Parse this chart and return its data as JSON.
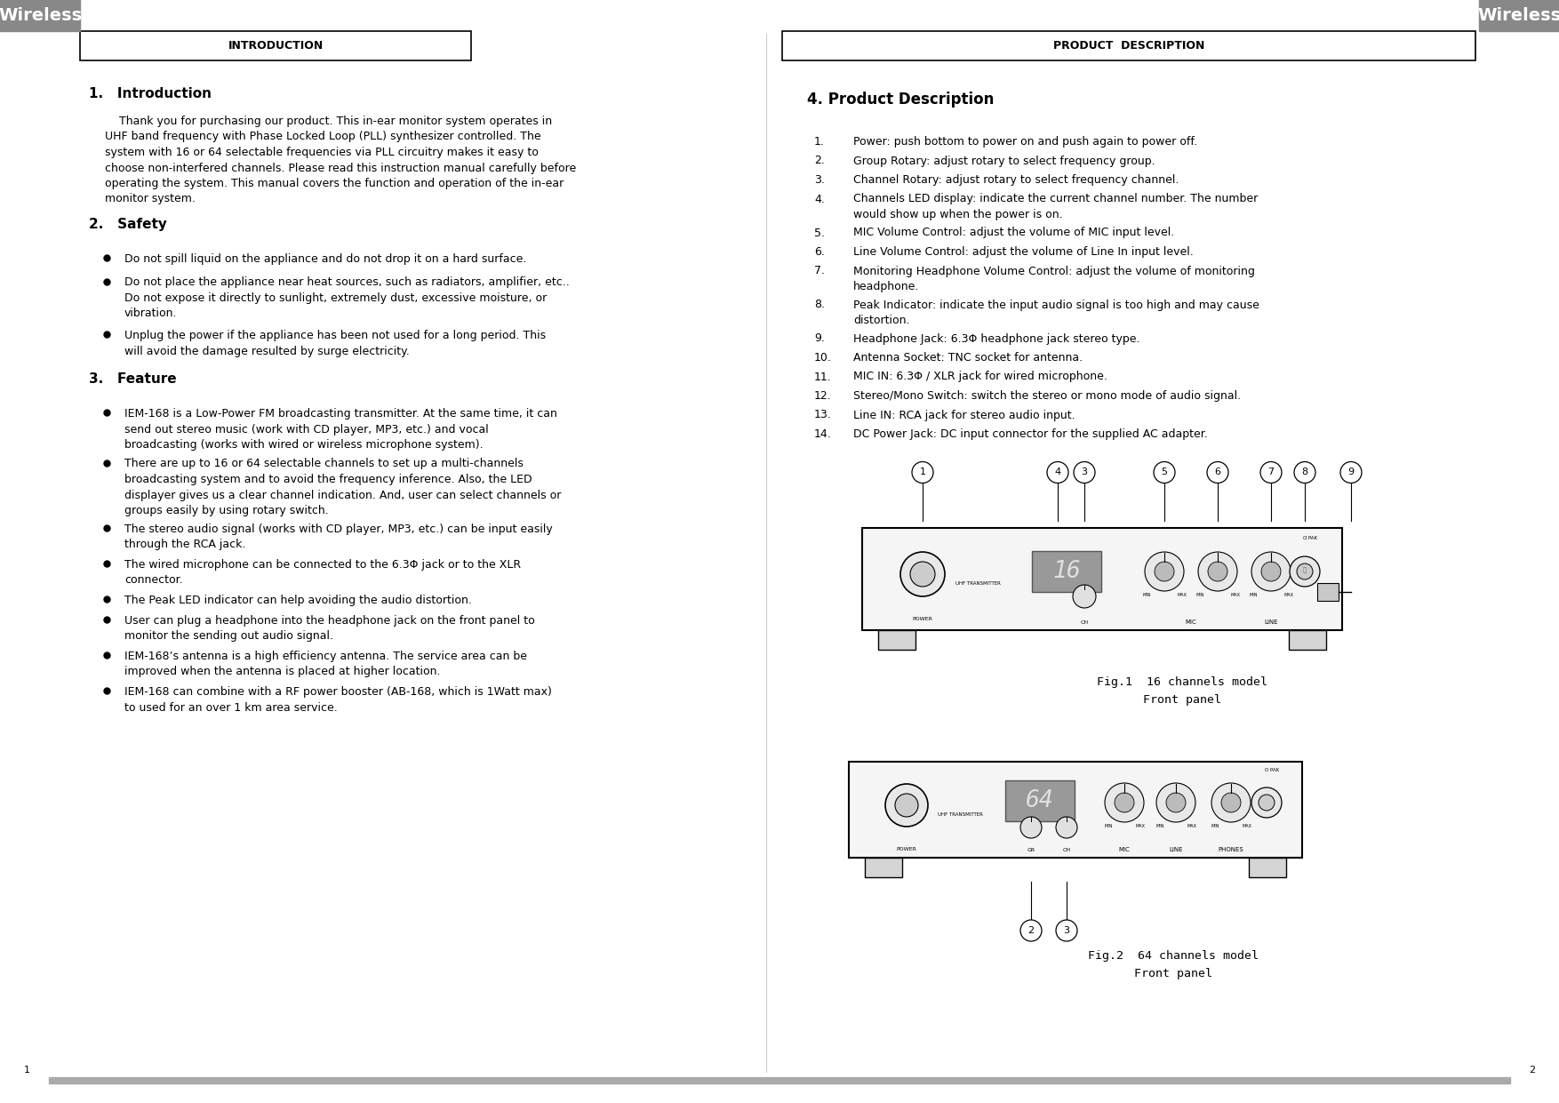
{
  "bg_color": "#ffffff",
  "header_bg": "#888888",
  "header_text_color": "#ffffff",
  "header_wireless_text": "Wireless",
  "header_wireless_fontsize": 14,
  "intro_box_label": "INTRODUCTION",
  "prod_box_label": "PRODUCT  DESCRIPTION",
  "footer_bar_color": "#aaaaaa",
  "page_num_left": "1",
  "page_num_right": "2",
  "left_column": {
    "section1_title": "1.   Introduction",
    "section1_indent": "    Thank you for purchasing our product. This in-ear monitor system operates in\nUHF band frequency with Phase Locked Loop (PLL) synthesizer controlled. The\nsystem with 16 or 64 selectable frequencies via PLL circuitry makes it easy to\nchoose non-interfered channels. Please read this instruction manual carefully before\noperating the system. This manual covers the function and operation of the in-ear\nmonitor system.",
    "section2_title": "2.   Safety",
    "section2_bullets": [
      "Do not spill liquid on the appliance and do not drop it on a hard surface.",
      "Do not place the appliance near heat sources, such as radiators, amplifier, etc..\nDo not expose it directly to sunlight, extremely dust, excessive moisture, or\nvibration.",
      "Unplug the power if the appliance has been not used for a long period. This\nwill avoid the damage resulted by surge electricity."
    ],
    "section3_title": "3.   Feature",
    "section3_bullets": [
      "IEM-168 is a Low-Power FM broadcasting transmitter. At the same time, it can\nsend out stereo music (work with CD player, MP3, etc.) and vocal\nbroadcasting (works with wired or wireless microphone system).",
      "There are up to 16 or 64 selectable channels to set up a multi-channels\nbroadcasting system and to avoid the frequency inference. Also, the LED\ndisplayer gives us a clear channel indication. And, user can select channels or\ngroups easily by using rotary switch.",
      "The stereo audio signal (works with CD player, MP3, etc.) can be input easily\nthrough the RCA jack.",
      "The wired microphone can be connected to the 6.3Φ jack or to the XLR\nconnector.",
      "The Peak LED indicator can help avoiding the audio distortion.",
      "User can plug a headphone into the headphone jack on the front panel to\nmonitor the sending out audio signal.",
      "IEM-168’s antenna is a high efficiency antenna. The service area can be\nimproved when the antenna is placed at higher location.",
      "IEM-168 can combine with a RF power booster (AB-168, which is 1Watt max)\nto used for an over 1 km area service."
    ]
  },
  "right_column": {
    "section4_title": "4. Product Description",
    "section4_items": [
      "Power: push bottom to power on and push again to power off.",
      "Group Rotary: adjust rotary to select frequency group.",
      "Channel Rotary: adjust rotary to select frequency channel.",
      "Channels LED display: indicate the current channel number. The number\nwould show up when the power is on.",
      "MIC Volume Control: adjust the volume of MIC input level.",
      "Line Volume Control: adjust the volume of Line In input level.",
      "Monitoring Headphone Volume Control: adjust the volume of monitoring\nheadphone.",
      "Peak Indicator: indicate the input audio signal is too high and may cause\ndistortion.",
      "Headphone Jack: 6.3Φ headphone jack stereo type.",
      "Antenna Socket: TNC socket for antenna.",
      "MIC IN: 6.3Φ / XLR jack for wired microphone.",
      "Stereo/Mono Switch: switch the stereo or mono mode of audio signal.",
      "Line IN: RCA jack for stereo audio input.",
      "DC Power Jack: DC input connector for the supplied AC adapter."
    ],
    "fig1_caption_line1": "Fig.1  16 channels model",
    "fig1_caption_line2": "Front panel",
    "fig2_caption_line1": "Fig.2  64 channels model",
    "fig2_caption_line2": "Front panel"
  }
}
